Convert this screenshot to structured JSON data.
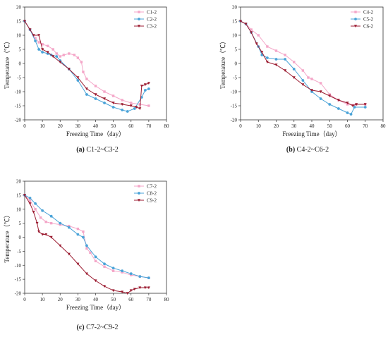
{
  "colors": {
    "pink": "#f4a6c8",
    "blue": "#4aa3d8",
    "red": "#9b1b30",
    "axis": "#333333"
  },
  "chart_data": [
    {
      "type": "line",
      "caption_letter": "(a)",
      "caption_text": " C1-2~C3-2",
      "xlabel": "Freezing Time（day）",
      "ylabel": "Temperature（℃）",
      "xlim": [
        0,
        80
      ],
      "ylim": [
        -20,
        20
      ],
      "xticks": [
        0,
        10,
        20,
        30,
        40,
        50,
        60,
        70,
        80
      ],
      "yticks": [
        -20,
        -15,
        -10,
        -5,
        0,
        5,
        10,
        15,
        20
      ],
      "grid": false,
      "legend_position": "top-right",
      "series": [
        {
          "name": "C1-2",
          "color": "#f4a6c8",
          "marker": "square",
          "x": [
            0,
            3,
            6,
            8,
            10,
            13,
            16,
            18,
            20,
            22,
            25,
            28,
            30,
            32,
            33,
            35,
            40,
            45,
            50,
            55,
            60,
            65,
            70
          ],
          "y": [
            15,
            12,
            9,
            7.5,
            6.8,
            6.2,
            5,
            3.5,
            2.5,
            3,
            3.5,
            3,
            2,
            0.5,
            -3,
            -5.5,
            -8,
            -10,
            -11.5,
            -13,
            -14,
            -14.5,
            -15
          ]
        },
        {
          "name": "C2-2",
          "color": "#4aa3d8",
          "marker": "circle",
          "x": [
            0,
            3,
            6,
            8,
            10,
            13,
            15,
            18,
            20,
            25,
            30,
            35,
            40,
            45,
            50,
            55,
            58,
            62,
            66,
            68,
            70
          ],
          "y": [
            15,
            12,
            8,
            5,
            4,
            3.5,
            3,
            2.5,
            1,
            -2,
            -6,
            -11,
            -12.5,
            -14,
            -15.5,
            -16.5,
            -17,
            -16,
            -12,
            -9.5,
            -9
          ]
        },
        {
          "name": "C3-2",
          "color": "#9b1b30",
          "marker": "triangle",
          "x": [
            0,
            3,
            5,
            8,
            10,
            13,
            16,
            20,
            25,
            30,
            35,
            40,
            45,
            50,
            55,
            60,
            63,
            65,
            66,
            68,
            70
          ],
          "y": [
            15,
            12,
            10,
            10,
            5,
            4,
            2.5,
            0.5,
            -2,
            -5,
            -9,
            -11,
            -12.5,
            -14,
            -14.5,
            -15,
            -15.5,
            -16,
            -8,
            -7.5,
            -7
          ]
        }
      ]
    },
    {
      "type": "line",
      "caption_letter": "(b)",
      "caption_text": " C4-2~C6-2",
      "xlabel": "Freezing Time（day）",
      "ylabel": "Temperature（℃）",
      "xlim": [
        0,
        80
      ],
      "ylim": [
        -20,
        20
      ],
      "xticks": [
        0,
        10,
        20,
        30,
        40,
        50,
        60,
        70,
        80
      ],
      "yticks": [
        -20,
        -15,
        -10,
        -5,
        0,
        5,
        10,
        15,
        20
      ],
      "grid": false,
      "legend_position": "top-right",
      "series": [
        {
          "name": "C4-2",
          "color": "#f4a6c8",
          "marker": "square",
          "x": [
            0,
            3,
            6,
            10,
            15,
            20,
            25,
            30,
            35,
            38,
            40,
            45,
            50,
            55,
            60,
            65,
            70
          ],
          "y": [
            15,
            14,
            12,
            10,
            6,
            4.5,
            3,
            0.5,
            -2.5,
            -5,
            -5.5,
            -7,
            -11,
            -13,
            -14.5,
            -14.5,
            -14.5
          ]
        },
        {
          "name": "C5-2",
          "color": "#4aa3d8",
          "marker": "circle",
          "x": [
            0,
            3,
            6,
            10,
            12,
            15,
            20,
            25,
            30,
            35,
            40,
            45,
            50,
            55,
            60,
            62,
            64,
            70
          ],
          "y": [
            15,
            14,
            11,
            6,
            3,
            2,
            1.5,
            1.5,
            -2,
            -6,
            -10,
            -12.5,
            -14.5,
            -16,
            -17.5,
            -18,
            -15.5,
            -15.5
          ]
        },
        {
          "name": "C6-2",
          "color": "#9b1b30",
          "marker": "triangle",
          "x": [
            0,
            3,
            6,
            9,
            12,
            15,
            20,
            25,
            30,
            35,
            40,
            45,
            50,
            55,
            60,
            63,
            65,
            70
          ],
          "y": [
            15,
            14,
            11,
            7,
            4,
            0.5,
            -0.5,
            -2.5,
            -5,
            -7.5,
            -9.5,
            -10,
            -11.5,
            -13,
            -14,
            -15,
            -14.5,
            -14.5
          ]
        }
      ]
    },
    {
      "type": "line",
      "caption_letter": "(c)",
      "caption_text": " C7-2~C9-2",
      "xlabel": "Freezing Time（day）",
      "ylabel": "Temperature（℃）",
      "xlim": [
        0,
        80
      ],
      "ylim": [
        -20,
        20
      ],
      "xticks": [
        0,
        10,
        20,
        30,
        40,
        50,
        60,
        70,
        80
      ],
      "yticks": [
        -20,
        -15,
        -10,
        -5,
        0,
        5,
        10,
        15,
        20
      ],
      "grid": false,
      "legend_position": "top-right",
      "series": [
        {
          "name": "C7-2",
          "color": "#f4a6c8",
          "marker": "square",
          "x": [
            0,
            3,
            6,
            9,
            12,
            15,
            20,
            25,
            30,
            33,
            35,
            37,
            40,
            45,
            50,
            55,
            60,
            65,
            70
          ],
          "y": [
            15,
            13,
            10,
            7,
            5.5,
            5,
            4.5,
            4,
            3,
            2,
            -4,
            -5.5,
            -8.5,
            -10.5,
            -12,
            -12.5,
            -13.5,
            -14,
            -14.5
          ]
        },
        {
          "name": "C8-2",
          "color": "#4aa3d8",
          "marker": "circle",
          "x": [
            0,
            3,
            6,
            10,
            15,
            20,
            25,
            30,
            33,
            35,
            40,
            45,
            50,
            55,
            60,
            65,
            70
          ],
          "y": [
            15,
            14,
            12,
            9.5,
            7.5,
            5,
            3.5,
            1,
            0,
            -3,
            -7,
            -9.5,
            -11,
            -12,
            -13,
            -14,
            -14.5
          ]
        },
        {
          "name": "C9-2",
          "color": "#9b1b30",
          "marker": "triangle",
          "x": [
            0,
            3,
            5,
            7,
            8,
            10,
            12,
            15,
            20,
            25,
            30,
            35,
            40,
            45,
            50,
            55,
            58,
            60,
            62,
            65,
            68,
            70
          ],
          "y": [
            15,
            12,
            9,
            5,
            2,
            1,
            1,
            0,
            -3,
            -6,
            -9.5,
            -13,
            -15.5,
            -17.5,
            -19,
            -19.5,
            -20,
            -19,
            -18.5,
            -18,
            -18,
            -18
          ]
        }
      ]
    }
  ]
}
